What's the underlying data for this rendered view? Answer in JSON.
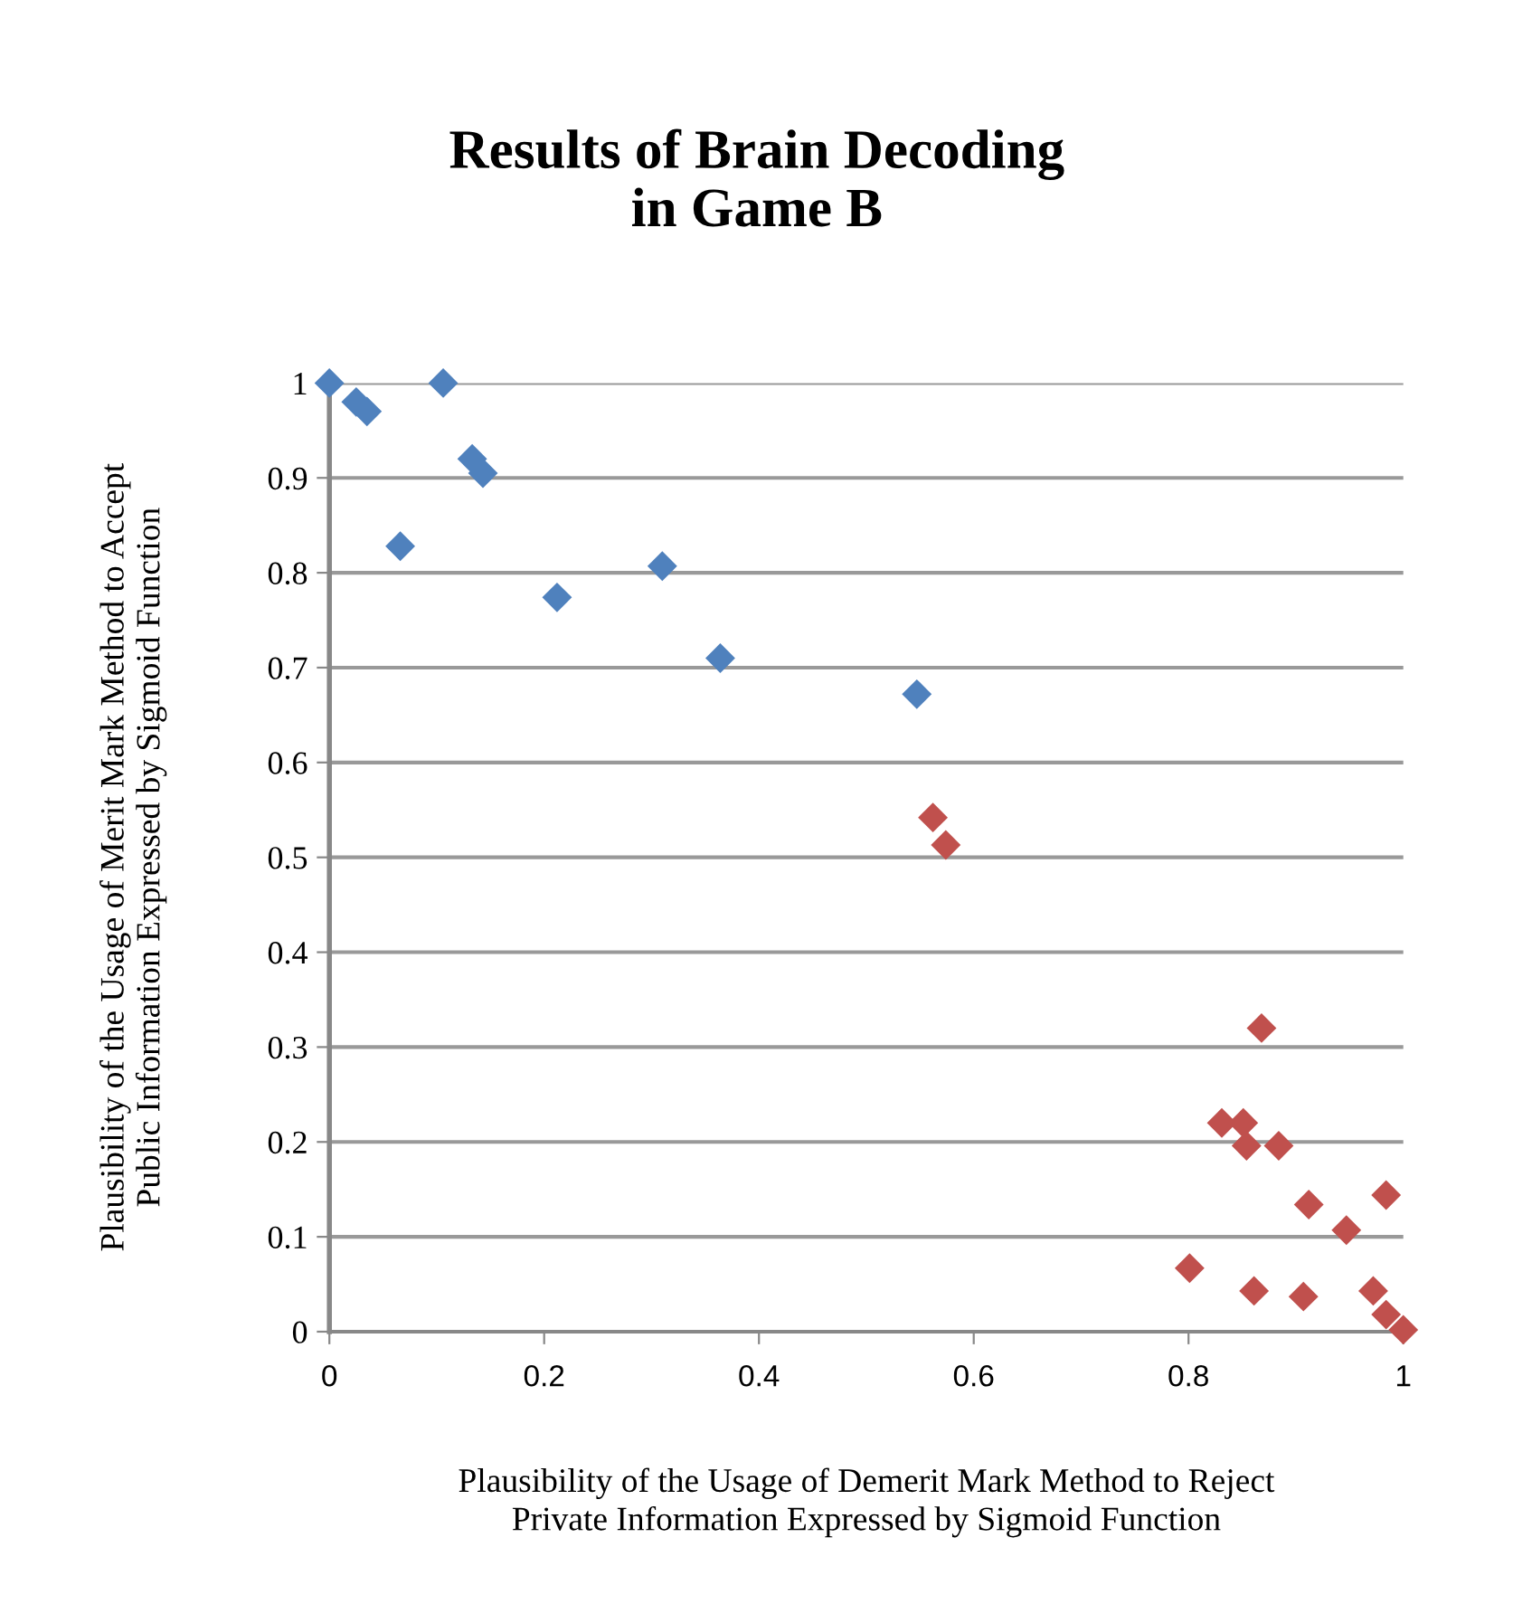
{
  "chart_data": {
    "type": "scatter",
    "title": "Results of Brain Decoding\nin Game B",
    "xlabel": "Plausibility of the Usage of Demerit Mark Method to Reject\nPrivate Information Expressed by Sigmoid Function",
    "ylabel": "Plausibility of the Usage of Merit Mark Method to Accept\nPublic Information Expressed by Sigmoid Function",
    "series": [
      {
        "color": "#4f81bd",
        "x": [
          0,
          0.025,
          0.035,
          0.106,
          0.133,
          0.143,
          0.066,
          0.212,
          0.31,
          0.364,
          0.547
        ],
        "values": [
          1.0,
          0.98,
          0.97,
          1.0,
          0.92,
          0.905,
          0.828,
          0.774,
          0.807,
          0.71,
          0.672
        ]
      },
      {
        "color": "#c0504d",
        "x": [
          0.562,
          0.574,
          0.868,
          0.831,
          0.851,
          0.854,
          0.884,
          0.912,
          0.984,
          0.947,
          0.801,
          0.861,
          0.907,
          0.972,
          0.984,
          1.0
        ],
        "values": [
          0.542,
          0.513,
          0.32,
          0.22,
          0.22,
          0.196,
          0.196,
          0.134,
          0.144,
          0.107,
          0.067,
          0.043,
          0.037,
          0.043,
          0.018,
          0.002
        ]
      }
    ],
    "marker": "diamond",
    "grid": "y",
    "xlim": [
      0,
      1
    ],
    "ylim": [
      0,
      1
    ],
    "xticks": [
      0,
      0.2,
      0.4,
      0.6,
      0.8,
      1
    ],
    "yticks": [
      0,
      0.1,
      0.2,
      0.3,
      0.4,
      0.5,
      0.6,
      0.7,
      0.8,
      0.9,
      1
    ]
  }
}
